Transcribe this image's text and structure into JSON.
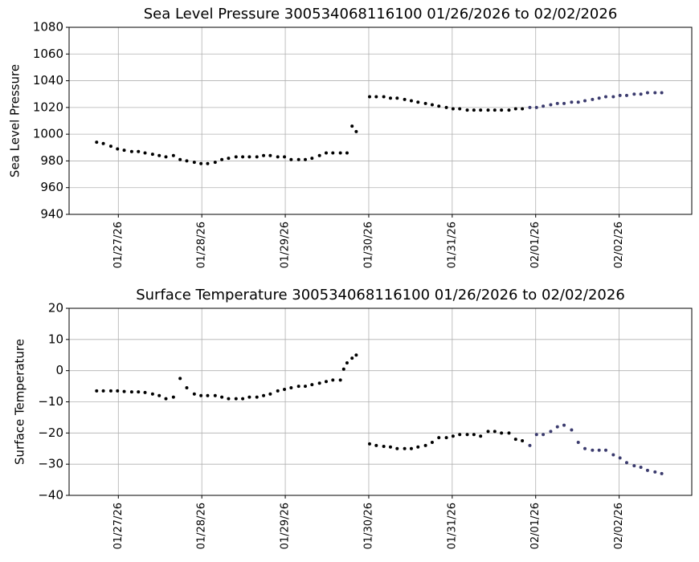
{
  "chart_data": [
    {
      "type": "scatter",
      "title": "Sea Level Pressure 300534068116100  01/26/2026 to 02/02/2026",
      "ylabel": "Sea Level Pressure",
      "xlim": [
        20479.41,
        20486.87
      ],
      "xticks": [
        {
          "value": 20480,
          "label": "01/27/26"
        },
        {
          "value": 20481,
          "label": "01/28/26"
        },
        {
          "value": 20482,
          "label": "01/29/26"
        },
        {
          "value": 20483,
          "label": "01/30/26"
        },
        {
          "value": 20484,
          "label": "01/31/26"
        },
        {
          "value": 20485,
          "label": "02/01/26"
        },
        {
          "value": 20486,
          "label": "02/02/26"
        }
      ],
      "ylim": [
        940,
        1080
      ],
      "yticks": [
        940,
        960,
        980,
        1000,
        1020,
        1040,
        1060,
        1080
      ],
      "grid": true,
      "series": [
        {
          "color": "#000000",
          "x": [
            20479.74,
            20479.82,
            20479.91,
            20479.99,
            20480.07,
            20480.16,
            20480.24,
            20480.32,
            20480.41,
            20480.49,
            20480.57,
            20480.66,
            20480.74,
            20480.82,
            20480.91,
            20480.99,
            20481.07,
            20481.16,
            20481.24,
            20481.32,
            20481.41,
            20481.49,
            20481.57,
            20481.66,
            20481.74,
            20481.82,
            20481.91,
            20481.99,
            20482.07,
            20482.16,
            20482.24,
            20482.32,
            20482.41,
            20482.49,
            20482.57,
            20482.66,
            20482.74,
            20482.8,
            20482.85,
            20483.01,
            20483.09,
            20483.18,
            20483.26,
            20483.34,
            20483.43,
            20483.51,
            20483.59,
            20483.68,
            20483.76,
            20483.84,
            20483.93,
            20484.01,
            20484.09,
            20484.18,
            20484.26,
            20484.34,
            20484.43,
            20484.51,
            20484.59,
            20484.68,
            20484.76,
            20484.84
          ],
          "values": [
            994,
            993,
            991,
            989,
            988,
            987,
            987,
            986,
            985,
            984,
            983,
            984,
            981,
            980,
            979,
            978,
            978,
            979,
            981,
            982,
            983,
            983,
            983,
            983,
            984,
            984,
            983,
            983,
            981,
            981,
            981,
            982,
            984,
            986,
            986,
            986,
            986,
            1006,
            1002,
            1028,
            1028,
            1028,
            1027,
            1027,
            1026,
            1025,
            1024,
            1023,
            1022,
            1021,
            1020,
            1019,
            1019,
            1018,
            1018,
            1018,
            1018,
            1018,
            1018,
            1018,
            1019,
            1019
          ]
        },
        {
          "color": "#3b3b6e",
          "x": [
            20484.93,
            20485.01,
            20485.09,
            20485.18,
            20485.26,
            20485.34,
            20485.43,
            20485.51,
            20485.59,
            20485.68,
            20485.76,
            20485.84,
            20485.93,
            20486.01,
            20486.09,
            20486.18,
            20486.26,
            20486.34,
            20486.43,
            20486.51
          ],
          "values": [
            1020,
            1020,
            1021,
            1022,
            1023,
            1023,
            1024,
            1024,
            1025,
            1026,
            1027,
            1028,
            1028,
            1029,
            1029,
            1030,
            1030,
            1031,
            1031,
            1031
          ]
        }
      ]
    },
    {
      "type": "scatter",
      "title": "Surface Temperature 300534068116100  01/26/2026 to 02/02/2026",
      "ylabel": "Surface Temperature",
      "xlim": [
        20479.41,
        20486.87
      ],
      "xticks": [
        {
          "value": 20480,
          "label": "01/27/26"
        },
        {
          "value": 20481,
          "label": "01/28/26"
        },
        {
          "value": 20482,
          "label": "01/29/26"
        },
        {
          "value": 20483,
          "label": "01/30/26"
        },
        {
          "value": 20484,
          "label": "01/31/26"
        },
        {
          "value": 20485,
          "label": "02/01/26"
        },
        {
          "value": 20486,
          "label": "02/02/26"
        }
      ],
      "ylim": [
        -40,
        20
      ],
      "yticks": [
        {
          "value": -40,
          "label": "−40"
        },
        {
          "value": -30,
          "label": "−30"
        },
        {
          "value": -20,
          "label": "−20"
        },
        {
          "value": -10,
          "label": "−10"
        },
        0,
        10,
        20
      ],
      "grid": true,
      "series": [
        {
          "color": "#000000",
          "x": [
            20479.74,
            20479.82,
            20479.91,
            20479.99,
            20480.07,
            20480.16,
            20480.24,
            20480.32,
            20480.41,
            20480.49,
            20480.57,
            20480.66,
            20480.74,
            20480.82,
            20480.91,
            20480.99,
            20481.07,
            20481.16,
            20481.24,
            20481.32,
            20481.41,
            20481.49,
            20481.57,
            20481.66,
            20481.74,
            20481.82,
            20481.91,
            20481.99,
            20482.07,
            20482.16,
            20482.24,
            20482.32,
            20482.41,
            20482.49,
            20482.57,
            20482.66,
            20482.7,
            20482.74,
            20482.8,
            20482.85,
            20483.01,
            20483.09,
            20483.18,
            20483.26,
            20483.34,
            20483.43,
            20483.51,
            20483.59,
            20483.68,
            20483.76,
            20483.84,
            20483.93,
            20484.01,
            20484.09,
            20484.18,
            20484.26,
            20484.34,
            20484.43,
            20484.51,
            20484.59,
            20484.68,
            20484.76,
            20484.84
          ],
          "values": [
            -6.5,
            -6.5,
            -6.5,
            -6.5,
            -6.7,
            -6.8,
            -6.8,
            -7,
            -7.5,
            -8,
            -9,
            -8.5,
            -2.5,
            -5.5,
            -7.5,
            -8,
            -8,
            -8,
            -8.5,
            -9,
            -9,
            -9,
            -8.5,
            -8.5,
            -8,
            -7.5,
            -6.5,
            -6,
            -5.5,
            -5,
            -5,
            -4.5,
            -4,
            -3.5,
            -3,
            -3,
            0.5,
            2.5,
            4,
            5,
            -23.5,
            -24,
            -24.3,
            -24.5,
            -25,
            -25,
            -25,
            -24.5,
            -24,
            -23,
            -21.5,
            -21.5,
            -21,
            -20.5,
            -20.5,
            -20.5,
            -21,
            -19.5,
            -19.5,
            -20,
            -20,
            -22,
            -22.5
          ]
        },
        {
          "color": "#3b3b6e",
          "x": [
            20484.93,
            20485.01,
            20485.09,
            20485.18,
            20485.26,
            20485.34,
            20485.43,
            20485.51,
            20485.59,
            20485.68,
            20485.76,
            20485.84,
            20485.93,
            20486.01,
            20486.09,
            20486.18,
            20486.26,
            20486.34,
            20486.43,
            20486.51
          ],
          "values": [
            -24,
            -20.5,
            -20.5,
            -19.5,
            -18,
            -17.5,
            -19,
            -23,
            -25,
            -25.5,
            -25.5,
            -25.5,
            -27,
            -28,
            -29.5,
            -30.5,
            -31,
            -32,
            -32.5,
            -33
          ]
        }
      ]
    }
  ]
}
